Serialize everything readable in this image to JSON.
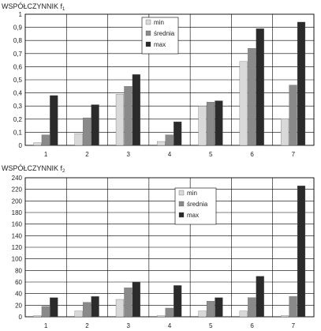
{
  "colors": {
    "min": "#d9d9d9",
    "srednia": "#8a8a8a",
    "max": "#2b2b2b",
    "grid": "#000000"
  },
  "chart_data": [
    {
      "type": "bar",
      "title": "WSPÓŁCZYNNIK f",
      "title_sub": "1",
      "categories": [
        "1",
        "2",
        "3",
        "4",
        "5",
        "6",
        "7"
      ],
      "series": [
        {
          "name": "min",
          "values": [
            0.02,
            0.09,
            0.39,
            0.03,
            0.3,
            0.64,
            0.2
          ]
        },
        {
          "name": "średnia",
          "values": [
            0.08,
            0.21,
            0.45,
            0.08,
            0.33,
            0.74,
            0.46
          ]
        },
        {
          "name": "max",
          "values": [
            0.38,
            0.31,
            0.54,
            0.18,
            0.34,
            0.89,
            0.94
          ]
        }
      ],
      "ylim": [
        0,
        1
      ],
      "yticks": [
        "0",
        "0,1",
        "0,2",
        "0,3",
        "0,4",
        "0,5",
        "0,6",
        "0,7",
        "0,8",
        "0,9",
        "1"
      ],
      "grid": true,
      "legend": "top-center"
    },
    {
      "type": "bar",
      "title": "WSPÓŁCZYNNIK f",
      "title_sub": "2",
      "categories": [
        "1",
        "2",
        "3",
        "4",
        "5",
        "6",
        "7"
      ],
      "series": [
        {
          "name": "min",
          "values": [
            2,
            10,
            30,
            2,
            10,
            10,
            2
          ]
        },
        {
          "name": "średnia",
          "values": [
            18,
            25,
            50,
            15,
            27,
            33,
            35
          ]
        },
        {
          "name": "max",
          "values": [
            33,
            35,
            60,
            54,
            33,
            70,
            226
          ]
        }
      ],
      "ylim": [
        0,
        240
      ],
      "yticks": [
        "0",
        "20",
        "40",
        "60",
        "80",
        "100",
        "120",
        "140",
        "160",
        "180",
        "200",
        "220",
        "240"
      ],
      "grid": true,
      "legend": "center"
    }
  ]
}
